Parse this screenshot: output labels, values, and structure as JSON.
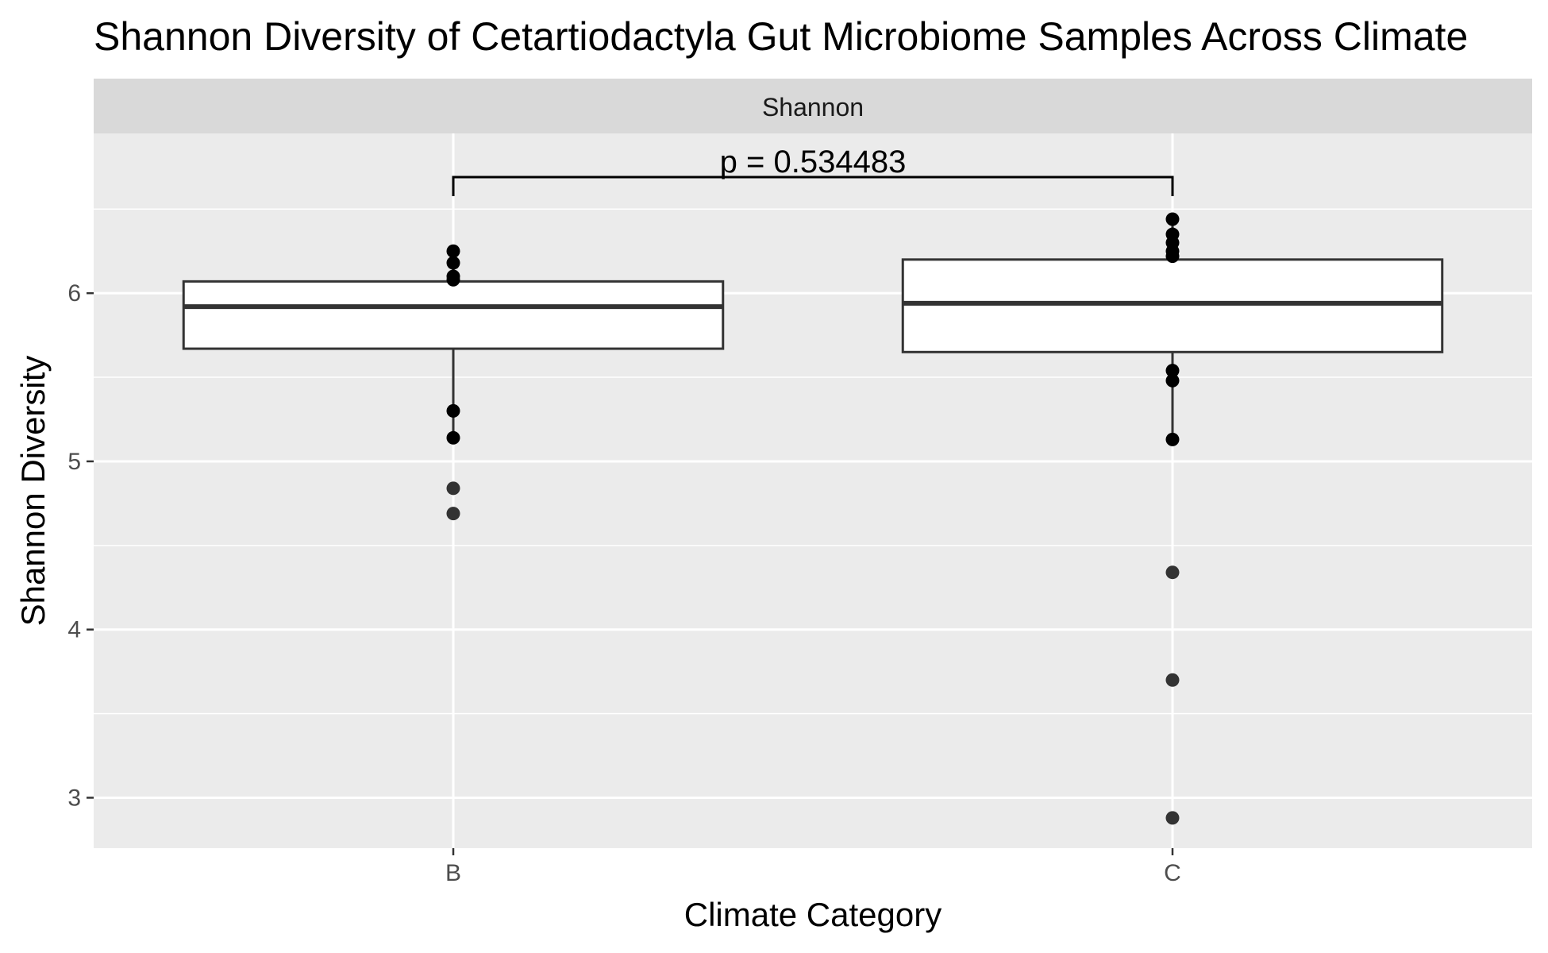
{
  "chart_data": {
    "type": "boxplot",
    "title": "Shannon Diversity of  Cetartiodactyla Gut Microbiome Samples Across Climate",
    "facet_label": "Shannon",
    "xlabel": "Climate Category",
    "ylabel": "Shannon Diversity",
    "ylim": [
      2.7,
      6.95
    ],
    "yticks": [
      3,
      4,
      5,
      6
    ],
    "grid": true,
    "categories": [
      "B",
      "C"
    ],
    "boxes": [
      {
        "category": "B",
        "q1": 5.67,
        "median": 5.92,
        "q3": 6.07,
        "whisker_low": 5.14,
        "whisker_high": 6.25
      },
      {
        "category": "C",
        "q1": 5.65,
        "median": 5.94,
        "q3": 6.2,
        "whisker_low": 5.13,
        "whisker_high": 6.44
      }
    ],
    "points": [
      {
        "category": "B",
        "values": [
          6.25,
          6.18,
          6.1,
          6.08,
          5.3,
          5.14
        ]
      },
      {
        "category": "C",
        "values": [
          6.44,
          6.35,
          6.3,
          6.25,
          6.22,
          5.54,
          5.48,
          5.13
        ]
      }
    ],
    "outliers": [
      {
        "category": "B",
        "values": [
          4.84,
          4.69
        ]
      },
      {
        "category": "C",
        "values": [
          4.34,
          3.7,
          2.88
        ]
      }
    ],
    "comparison": {
      "groups": [
        "B",
        "C"
      ],
      "label": "p = 0.534483",
      "y": 6.69
    }
  }
}
